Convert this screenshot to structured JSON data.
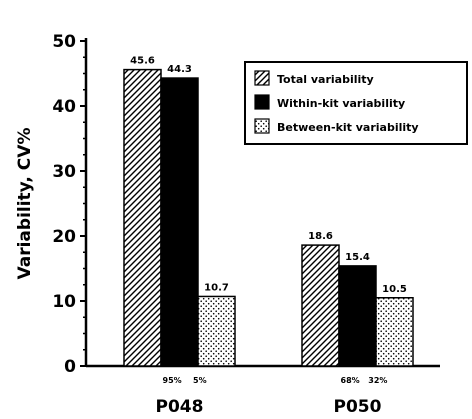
{
  "chart_data": {
    "type": "bar",
    "title": "",
    "xlabel": "",
    "ylabel": "Variability, CV%",
    "ylim": [
      0,
      50
    ],
    "yticks": [
      0,
      10,
      20,
      30,
      40,
      50
    ],
    "categories": [
      "P048",
      "P050"
    ],
    "series": [
      {
        "name": "Total variability",
        "values": [
          45.6,
          18.6
        ],
        "labels": [
          "45.6",
          "18.6"
        ],
        "pattern": "hatch"
      },
      {
        "name": "Within-kit variability",
        "values": [
          44.3,
          15.4
        ],
        "labels": [
          "44.3",
          "15.4"
        ],
        "pattern": "solid"
      },
      {
        "name": "Between-kit variability",
        "values": [
          10.7,
          10.5
        ],
        "labels": [
          "10.7",
          "10.5"
        ],
        "pattern": "dots"
      }
    ],
    "percent_annotations": [
      [
        "95%",
        "5%"
      ],
      [
        "68%",
        "32%"
      ]
    ],
    "legend_position": "top-right",
    "grid": false
  }
}
